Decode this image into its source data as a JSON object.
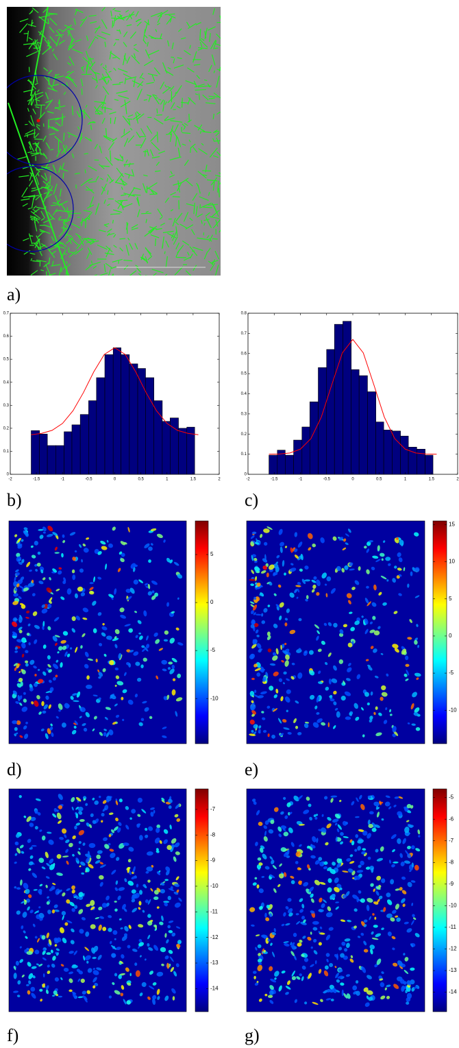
{
  "labels": [
    "a)",
    "b)",
    "c)",
    "d)",
    "e)",
    "f)",
    "g)"
  ],
  "chart_data": [
    {
      "type": "histogram",
      "bins": [
        -1.6,
        -1.44,
        -1.29,
        -1.13,
        -0.97,
        -0.82,
        -0.66,
        -0.5,
        -0.35,
        -0.19,
        -0.03,
        0.12,
        0.28,
        0.44,
        0.59,
        0.75,
        0.91,
        1.06,
        1.22,
        1.38,
        1.53
      ],
      "values": [
        0.19,
        0.175,
        0.125,
        0.125,
        0.185,
        0.215,
        0.26,
        0.32,
        0.42,
        0.52,
        0.55,
        0.52,
        0.48,
        0.46,
        0.42,
        0.32,
        0.23,
        0.245,
        0.2,
        0.205
      ],
      "color": "#00007f",
      "line": {
        "x": [
          -1.6,
          -1.4,
          -1.2,
          -1.0,
          -0.8,
          -0.6,
          -0.4,
          -0.2,
          0,
          0.2,
          0.4,
          0.6,
          0.8,
          1.0,
          1.2,
          1.4,
          1.6
        ],
        "values": [
          0.172,
          0.178,
          0.191,
          0.221,
          0.276,
          0.355,
          0.446,
          0.521,
          0.55,
          0.521,
          0.446,
          0.355,
          0.276,
          0.221,
          0.191,
          0.178,
          0.172
        ],
        "color": "#ff0000"
      },
      "xlim": [
        -2,
        2
      ],
      "xticks": [
        -2,
        -1.5,
        -1,
        -0.5,
        0,
        0.5,
        1,
        1.5,
        2
      ],
      "ylim": [
        0,
        0.7
      ],
      "yticks": [
        0,
        0.1,
        0.2,
        0.3,
        0.4,
        0.5,
        0.6,
        0.7
      ]
    },
    {
      "type": "histogram",
      "bins": [
        -1.6,
        -1.44,
        -1.29,
        -1.13,
        -0.97,
        -0.82,
        -0.66,
        -0.5,
        -0.35,
        -0.19,
        -0.03,
        0.12,
        0.28,
        0.44,
        0.59,
        0.75,
        0.91,
        1.06,
        1.22,
        1.38,
        1.53
      ],
      "values": [
        0.095,
        0.12,
        0.095,
        0.17,
        0.235,
        0.36,
        0.53,
        0.62,
        0.745,
        0.76,
        0.52,
        0.49,
        0.41,
        0.26,
        0.22,
        0.215,
        0.19,
        0.135,
        0.125,
        0.095
      ],
      "color": "#00007f",
      "line": {
        "x": [
          -1.6,
          -1.4,
          -1.2,
          -1.0,
          -0.8,
          -0.6,
          -0.4,
          -0.2,
          0,
          0.2,
          0.4,
          0.6,
          0.8,
          1.0,
          1.2,
          1.4,
          1.6
        ],
        "values": [
          0.1,
          0.101,
          0.106,
          0.125,
          0.177,
          0.285,
          0.446,
          0.603,
          0.67,
          0.603,
          0.446,
          0.285,
          0.177,
          0.125,
          0.106,
          0.101,
          0.1
        ],
        "color": "#ff0000"
      },
      "xlim": [
        -2,
        2
      ],
      "xticks": [
        -2,
        -1.5,
        -1,
        -0.5,
        0,
        0.5,
        1,
        1.5,
        2
      ],
      "ylim": [
        0,
        0.8
      ],
      "yticks": [
        0,
        0.1,
        0.2,
        0.3,
        0.4,
        0.5,
        0.6,
        0.7,
        0.8
      ]
    },
    {
      "type": "heatmap",
      "ylim": [
        -14.7,
        8.5
      ],
      "yticks": [
        -10,
        -5,
        0,
        5
      ]
    },
    {
      "type": "heatmap",
      "ylim": [
        -14.5,
        15.5
      ],
      "yticks": [
        -10,
        -5,
        0,
        5,
        10,
        15
      ]
    },
    {
      "type": "heatmap",
      "ylim": [
        -14.9,
        -6.2
      ],
      "yticks": [
        -14,
        -13,
        -12,
        -11,
        -10,
        -9,
        -8,
        -7
      ]
    },
    {
      "type": "heatmap",
      "ylim": [
        -14.9,
        -4.6
      ],
      "yticks": [
        -14,
        -13,
        -12,
        -11,
        -10,
        -9,
        -8,
        -7,
        -6,
        -5
      ]
    }
  ]
}
